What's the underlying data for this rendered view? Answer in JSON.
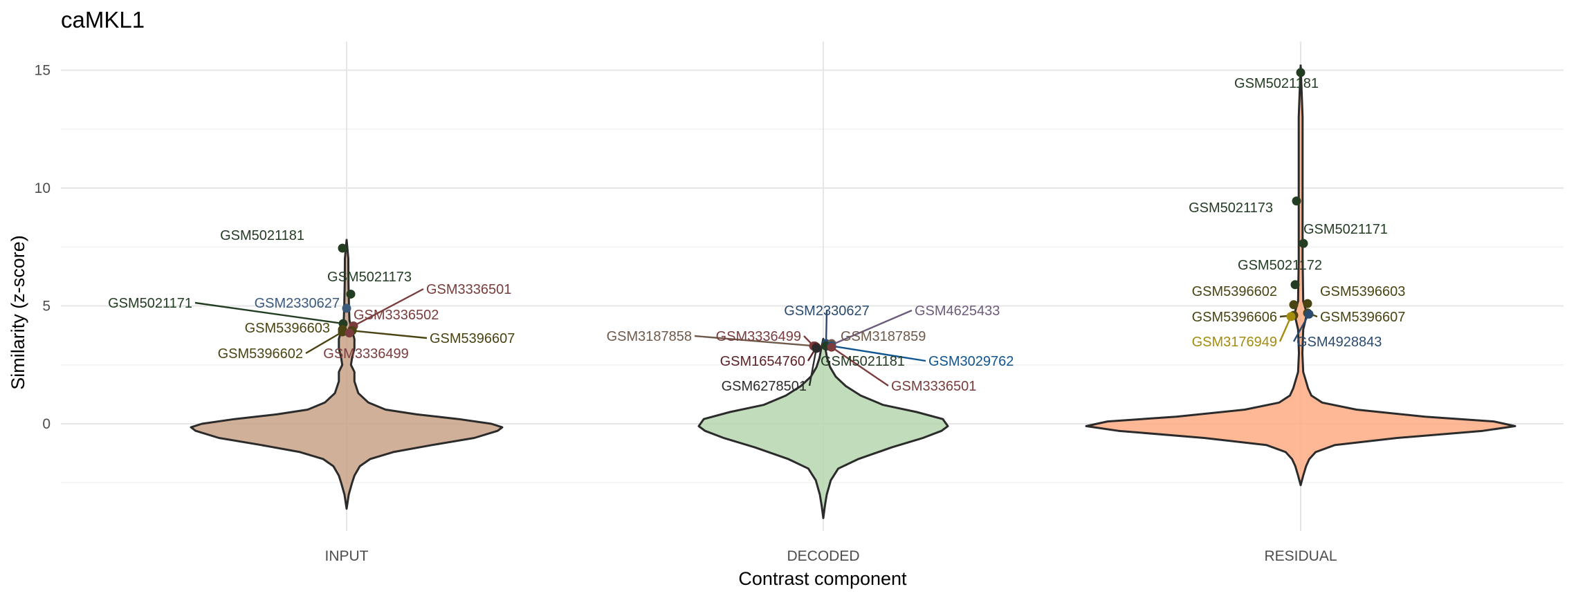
{
  "chart_data": {
    "type": "violin",
    "title": "caMKL1",
    "xlabel": "Contrast component",
    "ylabel": "Similarity (z-score)",
    "ylim": [
      -5,
      16
    ],
    "yticks": [
      0,
      5,
      10,
      15
    ],
    "grid": true,
    "categories": [
      "INPUT",
      "DECODED",
      "RESIDUAL"
    ],
    "violins": [
      {
        "category": "INPUT",
        "fill": "#c8a287",
        "profile": [
          [
            -3.6,
            0.0
          ],
          [
            -3.0,
            0.014
          ],
          [
            -2.5,
            0.035
          ],
          [
            -2.2,
            0.05
          ],
          [
            -1.8,
            0.085
          ],
          [
            -1.5,
            0.15
          ],
          [
            -1.2,
            0.3
          ],
          [
            -0.9,
            0.55
          ],
          [
            -0.6,
            0.82
          ],
          [
            -0.3,
            0.97
          ],
          [
            -0.15,
            1.0
          ],
          [
            0.0,
            0.93
          ],
          [
            0.2,
            0.72
          ],
          [
            0.4,
            0.45
          ],
          [
            0.6,
            0.25
          ],
          [
            0.9,
            0.14
          ],
          [
            1.3,
            0.075
          ],
          [
            1.8,
            0.05
          ],
          [
            2.2,
            0.05
          ],
          [
            2.5,
            0.028
          ],
          [
            2.8,
            0.035
          ],
          [
            3.2,
            0.05
          ],
          [
            3.6,
            0.05
          ],
          [
            4.0,
            0.032
          ],
          [
            4.4,
            0.018
          ],
          [
            5.0,
            0.015
          ],
          [
            6.0,
            0.012
          ],
          [
            7.0,
            0.011
          ],
          [
            7.8,
            0.0
          ]
        ],
        "points": [
          {
            "label": "GSM5021181",
            "y": 7.45,
            "color": "#233d23"
          },
          {
            "label": "GSM5021173",
            "y": 5.5,
            "color": "#233d23"
          },
          {
            "label": "GSM5021171",
            "y": 4.25,
            "color": "#233d23"
          },
          {
            "label": "GSM2330627",
            "y": 4.9,
            "color": "#3a5a7c"
          },
          {
            "label": "GSM3336501",
            "y": 4.15,
            "color": "#7a3c3c"
          },
          {
            "label": "GSM3336502",
            "y": 4.0,
            "color": "#7a3c3c"
          },
          {
            "label": "GSM5396603",
            "y": 4.0,
            "color": "#4a4312"
          },
          {
            "label": "GSM5396607",
            "y": 3.95,
            "color": "#4a4312"
          },
          {
            "label": "GSM5396602",
            "y": 3.9,
            "color": "#4a4312"
          },
          {
            "label": "GSM3336499",
            "y": 3.85,
            "color": "#7a3c3c"
          }
        ]
      },
      {
        "category": "DECODED",
        "fill": "#b5d6ae",
        "profile": [
          [
            -4.0,
            0.0
          ],
          [
            -3.5,
            0.012
          ],
          [
            -3.0,
            0.028
          ],
          [
            -2.4,
            0.06
          ],
          [
            -1.9,
            0.12
          ],
          [
            -1.5,
            0.28
          ],
          [
            -1.0,
            0.55
          ],
          [
            -0.6,
            0.8
          ],
          [
            -0.3,
            0.95
          ],
          [
            -0.1,
            1.0
          ],
          [
            0.2,
            0.96
          ],
          [
            0.5,
            0.75
          ],
          [
            0.8,
            0.48
          ],
          [
            1.2,
            0.3
          ],
          [
            1.6,
            0.18
          ],
          [
            2.0,
            0.1
          ],
          [
            2.4,
            0.055
          ],
          [
            2.8,
            0.03
          ],
          [
            3.1,
            0.02
          ],
          [
            3.4,
            0.008
          ],
          [
            3.6,
            0.0
          ]
        ],
        "points": [
          {
            "label": "GSM2330627",
            "y": 3.4,
            "color": "#2a4a6e"
          },
          {
            "label": "GSM4625433",
            "y": 3.3,
            "color": "#6c5b7b"
          },
          {
            "label": "GSM3187858",
            "y": 3.3,
            "color": "#6f5a4a"
          },
          {
            "label": "GSM3336499",
            "y": 3.3,
            "color": "#7a3c3c"
          },
          {
            "label": "GSM3187859",
            "y": 3.4,
            "color": "#6f5a4a"
          },
          {
            "label": "GSM1654760",
            "y": 3.25,
            "color": "#5c1f24"
          },
          {
            "label": "GSM5021181",
            "y": 3.3,
            "color": "#233d23"
          },
          {
            "label": "GSM3029762",
            "y": 3.3,
            "color": "#0f5591"
          },
          {
            "label": "GSM6278501",
            "y": 3.2,
            "color": "#2b2b2b"
          },
          {
            "label": "GSM3336501",
            "y": 3.25,
            "color": "#7a3c3c"
          }
        ]
      },
      {
        "category": "RESIDUAL",
        "fill": "#ffab84",
        "profile": [
          [
            -2.6,
            0.0
          ],
          [
            -2.2,
            0.012
          ],
          [
            -1.8,
            0.025
          ],
          [
            -1.5,
            0.04
          ],
          [
            -1.2,
            0.07
          ],
          [
            -0.9,
            0.16
          ],
          [
            -0.6,
            0.45
          ],
          [
            -0.3,
            0.85
          ],
          [
            -0.1,
            1.0
          ],
          [
            0.1,
            0.9
          ],
          [
            0.3,
            0.58
          ],
          [
            0.6,
            0.26
          ],
          [
            0.9,
            0.1
          ],
          [
            1.2,
            0.05
          ],
          [
            1.5,
            0.035
          ],
          [
            1.8,
            0.025
          ],
          [
            2.2,
            0.012
          ],
          [
            3.0,
            0.008
          ],
          [
            4.0,
            0.012
          ],
          [
            4.5,
            0.025
          ],
          [
            4.8,
            0.025
          ],
          [
            5.2,
            0.012
          ],
          [
            7.0,
            0.009
          ],
          [
            10.0,
            0.009
          ],
          [
            13.0,
            0.009
          ],
          [
            15.2,
            0.0
          ]
        ],
        "points": [
          {
            "label": "GSM5021181",
            "y": 14.9,
            "color": "#233d23"
          },
          {
            "label": "GSM5021173",
            "y": 9.45,
            "color": "#233d23"
          },
          {
            "label": "GSM5021171",
            "y": 7.65,
            "color": "#233d23"
          },
          {
            "label": "GSM5021172",
            "y": 5.9,
            "color": "#233d23"
          },
          {
            "label": "GSM5396602",
            "y": 5.05,
            "color": "#4a4312"
          },
          {
            "label": "GSM5396603",
            "y": 5.1,
            "color": "#4a4312"
          },
          {
            "label": "GSM5396606",
            "y": 4.6,
            "color": "#4a4312"
          },
          {
            "label": "GSM5396607",
            "y": 4.7,
            "color": "#4a4312"
          },
          {
            "label": "GSM3176949",
            "y": 4.55,
            "color": "#a58c0e"
          },
          {
            "label": "GSM4928843",
            "y": 4.65,
            "color": "#2a4a6e"
          }
        ]
      }
    ]
  }
}
